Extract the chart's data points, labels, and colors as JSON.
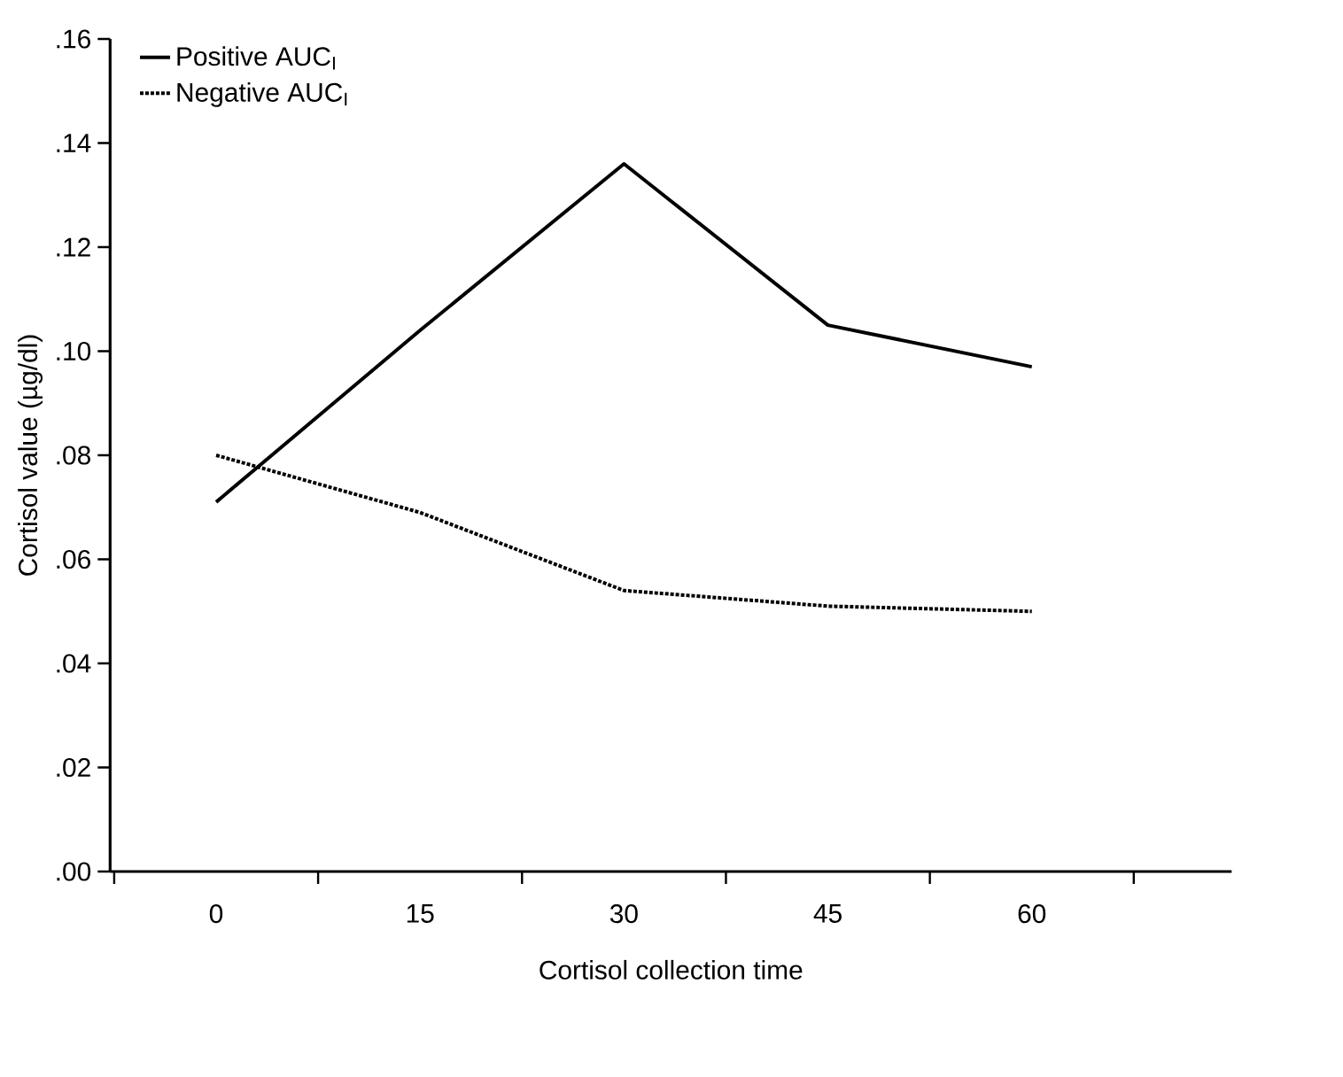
{
  "chart_data": {
    "type": "line",
    "xlabel": "Cortisol collection time",
    "ylabel": "Cortisol value (µg/dl)",
    "categories": [
      "0",
      "15",
      "30",
      "45",
      "60"
    ],
    "series": [
      {
        "name": "Positive AUC$_{I}$",
        "color": "#000000",
        "line_style": "solid",
        "values": [
          0.071,
          0.104,
          0.136,
          0.105,
          0.097
        ]
      },
      {
        "name": "Negative AUC$_{I}$",
        "color": "#000000",
        "line_style": "dotted",
        "values": [
          0.08,
          0.069,
          0.054,
          0.051,
          0.05
        ]
      }
    ],
    "ylim": [
      0,
      0.16
    ],
    "yticks": [
      {
        "value": 0,
        "label": ".00"
      },
      {
        "value": 0.02,
        "label": ".02"
      },
      {
        "value": 0.04,
        "label": ".04"
      },
      {
        "value": 0.06,
        "label": ".06"
      },
      {
        "value": 0.08,
        "label": ".08"
      },
      {
        "value": 0.1,
        "label": ".10"
      },
      {
        "value": 0.12,
        "label": ".12"
      },
      {
        "value": 0.14,
        "label": ".14"
      },
      {
        "value": 0.16,
        "label": ".16"
      }
    ],
    "grid": false,
    "legend": "top left",
    "marker": "none"
  }
}
